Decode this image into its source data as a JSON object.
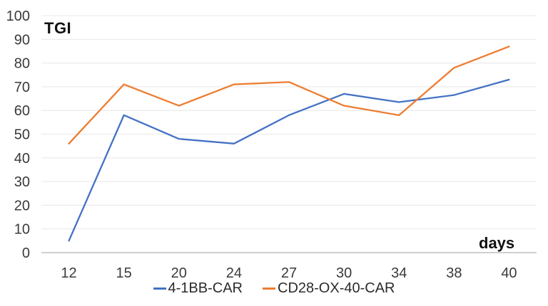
{
  "chart_data": {
    "type": "line",
    "title": "TGI",
    "xlabel": "days",
    "ylabel": "",
    "x_categories": [
      "12",
      "15",
      "20",
      "24",
      "27",
      "30",
      "34",
      "38",
      "40"
    ],
    "y_ticks": [
      0,
      10,
      20,
      30,
      40,
      50,
      60,
      70,
      80,
      90,
      100
    ],
    "ylim": [
      0,
      100
    ],
    "grid": "horizontal",
    "legend_position": "bottom",
    "series": [
      {
        "name": "4-1BB-CAR",
        "color": "#4472C4",
        "values": [
          5,
          58,
          48,
          46,
          58,
          67,
          63.5,
          66.5,
          73
        ]
      },
      {
        "name": "CD28-OX-40-CAR",
        "color": "#ED7D31",
        "values": [
          46,
          71,
          62,
          71,
          72,
          62,
          58,
          78,
          87
        ]
      }
    ]
  },
  "colors": {
    "background": "#ffffff",
    "gridline": "#e9e9e9",
    "axis_line": "#bdbdbd",
    "tick_text": "#3a3a3a",
    "title_text": "#111111"
  }
}
